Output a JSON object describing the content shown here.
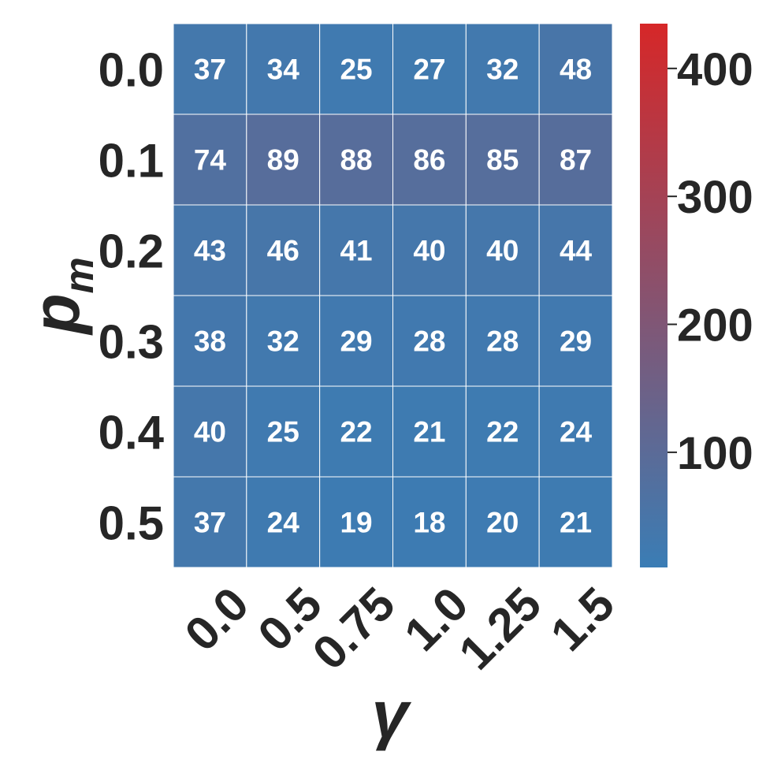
{
  "chart_data": {
    "type": "heatmap",
    "title": "",
    "xlabel": "γ",
    "ylabel_main": "p",
    "ylabel_sub": "m",
    "x_categories": [
      "0.0",
      "0.5",
      "0.75",
      "1.0",
      "1.25",
      "1.5"
    ],
    "y_categories": [
      "0.0",
      "0.1",
      "0.2",
      "0.3",
      "0.4",
      "0.5"
    ],
    "values": [
      [
        37,
        34,
        25,
        27,
        32,
        48
      ],
      [
        74,
        89,
        88,
        86,
        85,
        87
      ],
      [
        43,
        46,
        41,
        40,
        40,
        44
      ],
      [
        38,
        32,
        29,
        28,
        28,
        29
      ],
      [
        40,
        25,
        22,
        21,
        22,
        24
      ],
      [
        37,
        24,
        19,
        18,
        20,
        21
      ]
    ],
    "annotations": true,
    "colorbar": {
      "min": 10,
      "max": 435,
      "ticks": [
        100,
        200,
        300,
        400
      ],
      "tick_labels": [
        "100",
        "200",
        "300",
        "400"
      ],
      "color_low": "#3a7db5",
      "color_high": "#d62728"
    },
    "cell_border_color": "#ffffff"
  }
}
